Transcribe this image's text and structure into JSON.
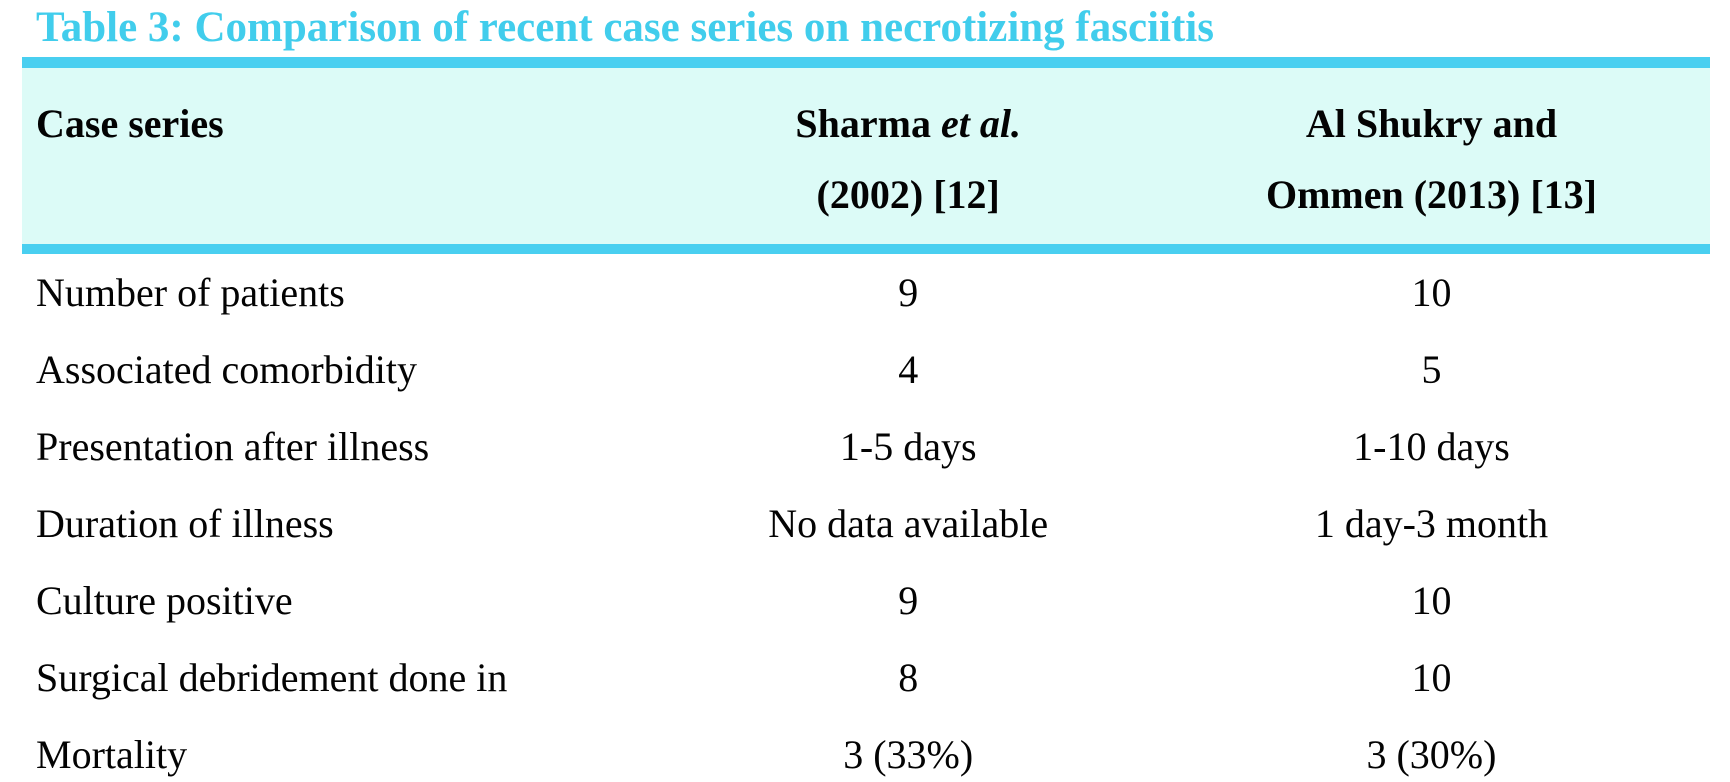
{
  "page": {
    "title": "Table 3: Comparison of recent case series on necrotizing fasciitis"
  },
  "colors": {
    "title_text": "#41CDEC",
    "accent_bar": "#49CFF0",
    "header_background": "#DCFBF7",
    "bottom_rule": "#58DFF3",
    "body_text": "#030303"
  },
  "table": {
    "columns": {
      "col1_header": "Case series",
      "col2_header_line1_name": "Sharma ",
      "col2_header_line1_etal": "et al.",
      "col2_header_line2": "(2002) [12]",
      "col3_header_line1": "Al Shukry and",
      "col3_header_line2": "Ommen (2013) [13]"
    },
    "rows": [
      {
        "label": "Number of patients",
        "sharma_2002": "9",
        "al_shukry_ommen_2013": "10"
      },
      {
        "label": "Associated comorbidity",
        "sharma_2002": "4",
        "al_shukry_ommen_2013": "5"
      },
      {
        "label": "Presentation after illness",
        "sharma_2002": "1-5 days",
        "al_shukry_ommen_2013": "1-10 days"
      },
      {
        "label": "Duration of illness",
        "sharma_2002": "No data available",
        "al_shukry_ommen_2013": "1 day-3 month"
      },
      {
        "label": "Culture positive",
        "sharma_2002": "9",
        "al_shukry_ommen_2013": "10"
      },
      {
        "label": "Surgical debridement done in",
        "sharma_2002": "8",
        "al_shukry_ommen_2013": "10"
      },
      {
        "label": "Mortality",
        "sharma_2002": "3 (33%)",
        "al_shukry_ommen_2013": "3 (30%)"
      }
    ]
  }
}
